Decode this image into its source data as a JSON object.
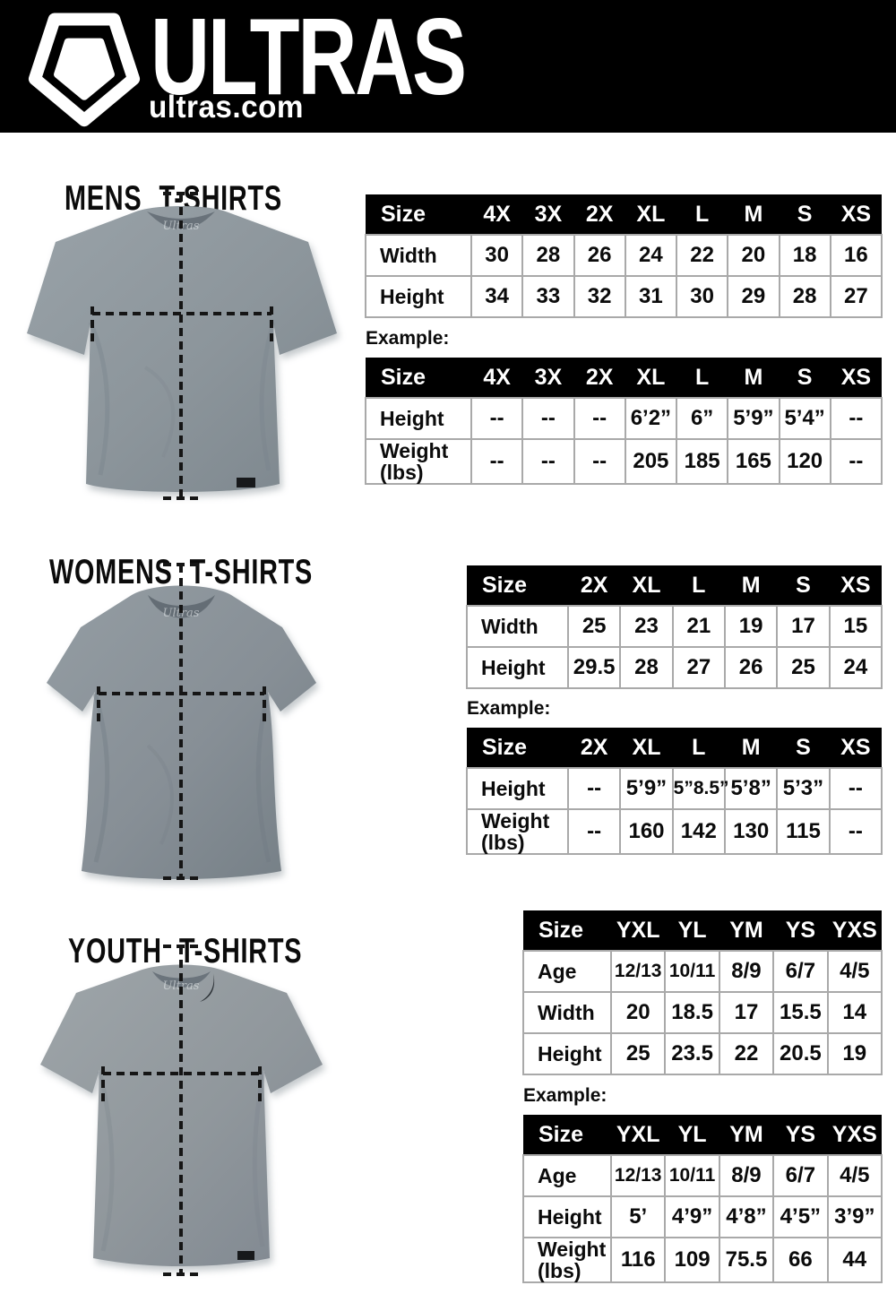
{
  "header": {
    "brand": "ULTRAS",
    "domain": "ultras.com",
    "logo_icon": "pentagon-shield-icon"
  },
  "colors": {
    "header_bg": "#000000",
    "table_header_bg": "#000000",
    "table_header_text": "#ffffff",
    "table_border": "#a9a9a9",
    "shirt_gray": "#8f979b",
    "text": "#000000",
    "background": "#ffffff"
  },
  "sections": [
    {
      "id": "mens",
      "title": "MENS T-SHIRTS",
      "example_label": "Example:",
      "size_table": {
        "columns": [
          "Size",
          "4X",
          "3X",
          "2X",
          "XL",
          "L",
          "M",
          "S",
          "XS"
        ],
        "rows": [
          {
            "label": "Width",
            "values": [
              "30",
              "28",
              "26",
              "24",
              "22",
              "20",
              "18",
              "16"
            ]
          },
          {
            "label": "Height",
            "values": [
              "34",
              "33",
              "32",
              "31",
              "30",
              "29",
              "28",
              "27"
            ]
          }
        ]
      },
      "example_table": {
        "columns": [
          "Size",
          "4X",
          "3X",
          "2X",
          "XL",
          "L",
          "M",
          "S",
          "XS"
        ],
        "rows": [
          {
            "label": "Height",
            "values": [
              "--",
              "--",
              "--",
              "6’2”",
              "6”",
              "5’9”",
              "5’4”",
              "--"
            ]
          },
          {
            "label": "Weight\n(lbs)",
            "values": [
              "--",
              "--",
              "--",
              "205",
              "185",
              "165",
              "120",
              "--"
            ]
          }
        ]
      }
    },
    {
      "id": "womens",
      "title": "WOMENS T-SHIRTS",
      "example_label": "Example:",
      "size_table": {
        "columns": [
          "Size",
          "2X",
          "XL",
          "L",
          "M",
          "S",
          "XS"
        ],
        "rows": [
          {
            "label": "Width",
            "values": [
              "25",
              "23",
              "21",
              "19",
              "17",
              "15"
            ]
          },
          {
            "label": "Height",
            "values": [
              "29.5",
              "28",
              "27",
              "26",
              "25",
              "24"
            ]
          }
        ]
      },
      "example_table": {
        "columns": [
          "Size",
          "2X",
          "XL",
          "L",
          "M",
          "S",
          "XS"
        ],
        "rows": [
          {
            "label": "Height",
            "values": [
              "--",
              "5’9”",
              "5”8.5”",
              "5’8”",
              "5’3”",
              "--"
            ]
          },
          {
            "label": "Weight\n(lbs)",
            "values": [
              "--",
              "160",
              "142",
              "130",
              "115",
              "--"
            ]
          }
        ]
      }
    },
    {
      "id": "youth",
      "title": "YOUTH T-SHIRTS",
      "example_label": "Example:",
      "size_table": {
        "columns": [
          "Size",
          "YXL",
          "YL",
          "YM",
          "YS",
          "YXS"
        ],
        "rows": [
          {
            "label": "Age",
            "values": [
              "12/13",
              "10/11",
              "8/9",
              "6/7",
              "4/5"
            ]
          },
          {
            "label": "Width",
            "values": [
              "20",
              "18.5",
              "17",
              "15.5",
              "14"
            ]
          },
          {
            "label": "Height",
            "values": [
              "25",
              "23.5",
              "22",
              "20.5",
              "19"
            ]
          }
        ]
      },
      "example_table": {
        "columns": [
          "Size",
          "YXL",
          "YL",
          "YM",
          "YS",
          "YXS"
        ],
        "rows": [
          {
            "label": "Age",
            "values": [
              "12/13",
              "10/11",
              "8/9",
              "6/7",
              "4/5"
            ]
          },
          {
            "label": "Height",
            "values": [
              "5’",
              "4’9”",
              "4’8”",
              "4’5”",
              "3’9”"
            ]
          },
          {
            "label": "Weight\n(lbs)",
            "values": [
              "116",
              "109",
              "75.5",
              "66",
              "44"
            ]
          }
        ]
      }
    }
  ]
}
